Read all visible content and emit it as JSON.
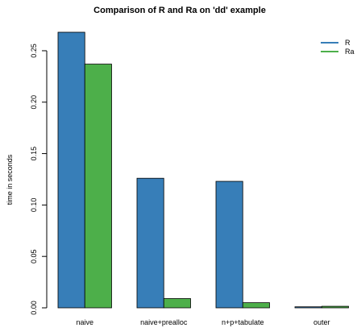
{
  "chart_data": {
    "type": "bar",
    "title": "Comparison of R and Ra on 'dd' example",
    "xlabel": "",
    "ylabel": "time in seconds",
    "categories": [
      "naive",
      "naive+prealloc",
      "n+p+tabulate",
      "outer"
    ],
    "series": [
      {
        "name": "R",
        "color": "#377EB8",
        "values": [
          0.268,
          0.126,
          0.123,
          0.001
        ]
      },
      {
        "name": "Ra",
        "color": "#4DAF4A",
        "values": [
          0.237,
          0.009,
          0.005,
          0.0015
        ]
      }
    ],
    "ylim": [
      0,
      0.268
    ],
    "yticks": [
      0.0,
      0.05,
      0.1,
      0.15,
      0.2,
      0.25
    ],
    "ytick_labels": [
      "0.00",
      "0.05",
      "0.10",
      "0.15",
      "0.20",
      "0.25"
    ],
    "grid": false,
    "legend_position": "top-right",
    "bar_border_color": "#000000"
  }
}
